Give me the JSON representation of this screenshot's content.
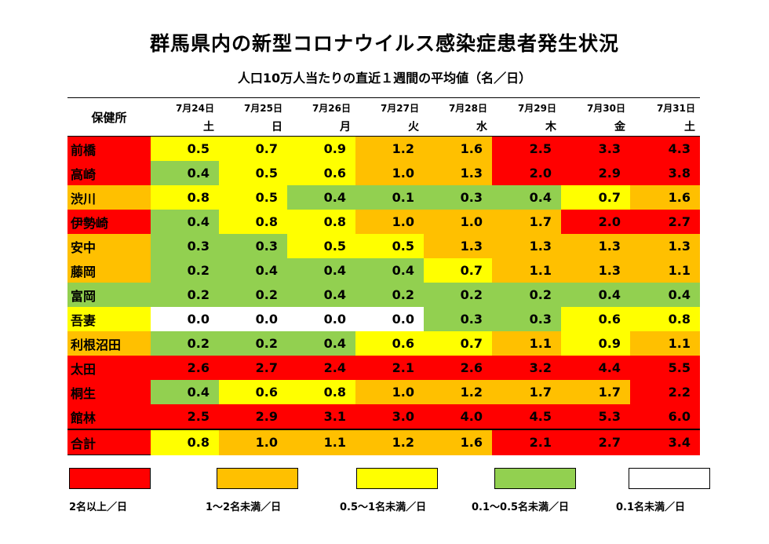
{
  "title": "群馬県内の新型コロナウイルス感染症患者発生状況",
  "subtitle": "人口10万人当たりの直近１週間の平均値（名／日）",
  "header": {
    "office_label": "保健所",
    "dates": [
      "7月24日",
      "7月25日",
      "7月26日",
      "7月27日",
      "7月28日",
      "7月29日",
      "7月30日",
      "7月31日"
    ],
    "days": [
      "土",
      "日",
      "月",
      "火",
      "水",
      "木",
      "金",
      "土"
    ]
  },
  "colors": {
    "red": "#ff0000",
    "orange": "#ffc000",
    "yellow": "#ffff00",
    "green": "#92d050",
    "white": "#ffffff"
  },
  "rows": [
    {
      "office": "前橋",
      "values": [
        "0.5",
        "0.7",
        "0.9",
        "1.2",
        "1.6",
        "2.5",
        "3.3",
        "4.3"
      ]
    },
    {
      "office": "高崎",
      "values": [
        "0.4",
        "0.5",
        "0.6",
        "1.0",
        "1.3",
        "2.0",
        "2.9",
        "3.8"
      ]
    },
    {
      "office": "渋川",
      "values": [
        "0.8",
        "0.5",
        "0.4",
        "0.1",
        "0.3",
        "0.4",
        "0.7",
        "1.6"
      ]
    },
    {
      "office": "伊勢崎",
      "values": [
        "0.4",
        "0.8",
        "0.8",
        "1.0",
        "1.0",
        "1.7",
        "2.0",
        "2.7"
      ]
    },
    {
      "office": "安中",
      "values": [
        "0.3",
        "0.3",
        "0.5",
        "0.5",
        "1.3",
        "1.3",
        "1.3",
        "1.3"
      ]
    },
    {
      "office": "藤岡",
      "values": [
        "0.2",
        "0.4",
        "0.4",
        "0.4",
        "0.7",
        "1.1",
        "1.3",
        "1.1"
      ]
    },
    {
      "office": "富岡",
      "values": [
        "0.2",
        "0.2",
        "0.4",
        "0.2",
        "0.2",
        "0.2",
        "0.4",
        "0.4"
      ]
    },
    {
      "office": "吾妻",
      "values": [
        "0.0",
        "0.0",
        "0.0",
        "0.0",
        "0.3",
        "0.3",
        "0.6",
        "0.8"
      ]
    },
    {
      "office": "利根沼田",
      "values": [
        "0.2",
        "0.2",
        "0.4",
        "0.6",
        "0.7",
        "1.1",
        "0.9",
        "1.1"
      ]
    },
    {
      "office": "太田",
      "values": [
        "2.6",
        "2.7",
        "2.4",
        "2.1",
        "2.6",
        "3.2",
        "4.4",
        "5.5"
      ]
    },
    {
      "office": "桐生",
      "values": [
        "0.4",
        "0.6",
        "0.8",
        "1.0",
        "1.2",
        "1.7",
        "1.7",
        "2.2"
      ]
    },
    {
      "office": "館林",
      "values": [
        "2.5",
        "2.9",
        "3.1",
        "3.0",
        "4.0",
        "4.5",
        "5.3",
        "6.0"
      ]
    }
  ],
  "total": {
    "office": "合計",
    "values": [
      "0.8",
      "1.0",
      "1.1",
      "1.2",
      "1.6",
      "2.1",
      "2.7",
      "3.4"
    ]
  },
  "legend": [
    {
      "label": "2名以上／日",
      "color": "#ff0000"
    },
    {
      "label": "1～2名未満／日",
      "color": "#ffc000"
    },
    {
      "label": "0.5～1名未満／日",
      "color": "#ffff00"
    },
    {
      "label": "0.1～0.5名未満／日",
      "color": "#92d050"
    },
    {
      "label": "0.1名未満／日",
      "color": "#ffffff"
    }
  ],
  "chart_data": {
    "type": "table",
    "title": "群馬県内の新型コロナウイルス感染症患者発生状況",
    "subtitle": "人口10万人当たりの直近１週間の平均値（名／日）",
    "columns": [
      "7月24日",
      "7月25日",
      "7月26日",
      "7月27日",
      "7月28日",
      "7月29日",
      "7月30日",
      "7月31日"
    ],
    "row_labels": [
      "前橋",
      "高崎",
      "渋川",
      "伊勢崎",
      "安中",
      "藤岡",
      "富岡",
      "吾妻",
      "利根沼田",
      "太田",
      "桐生",
      "館林",
      "合計"
    ],
    "values": [
      [
        0.5,
        0.7,
        0.9,
        1.2,
        1.6,
        2.5,
        3.3,
        4.3
      ],
      [
        0.4,
        0.5,
        0.6,
        1.0,
        1.3,
        2.0,
        2.9,
        3.8
      ],
      [
        0.8,
        0.5,
        0.4,
        0.1,
        0.3,
        0.4,
        0.7,
        1.6
      ],
      [
        0.4,
        0.8,
        0.8,
        1.0,
        1.0,
        1.7,
        2.0,
        2.7
      ],
      [
        0.3,
        0.3,
        0.5,
        0.5,
        1.3,
        1.3,
        1.3,
        1.3
      ],
      [
        0.2,
        0.4,
        0.4,
        0.4,
        0.7,
        1.1,
        1.3,
        1.1
      ],
      [
        0.2,
        0.2,
        0.4,
        0.2,
        0.2,
        0.2,
        0.4,
        0.4
      ],
      [
        0.0,
        0.0,
        0.0,
        0.0,
        0.3,
        0.3,
        0.6,
        0.8
      ],
      [
        0.2,
        0.2,
        0.4,
        0.6,
        0.7,
        1.1,
        0.9,
        1.1
      ],
      [
        2.6,
        2.7,
        2.4,
        2.1,
        2.6,
        3.2,
        4.4,
        5.5
      ],
      [
        0.4,
        0.6,
        0.8,
        1.0,
        1.2,
        1.7,
        1.7,
        2.2
      ],
      [
        2.5,
        2.9,
        3.1,
        3.0,
        4.0,
        4.5,
        5.3,
        6.0
      ],
      [
        0.8,
        1.0,
        1.1,
        1.2,
        1.6,
        2.1,
        2.7,
        3.4
      ]
    ]
  }
}
